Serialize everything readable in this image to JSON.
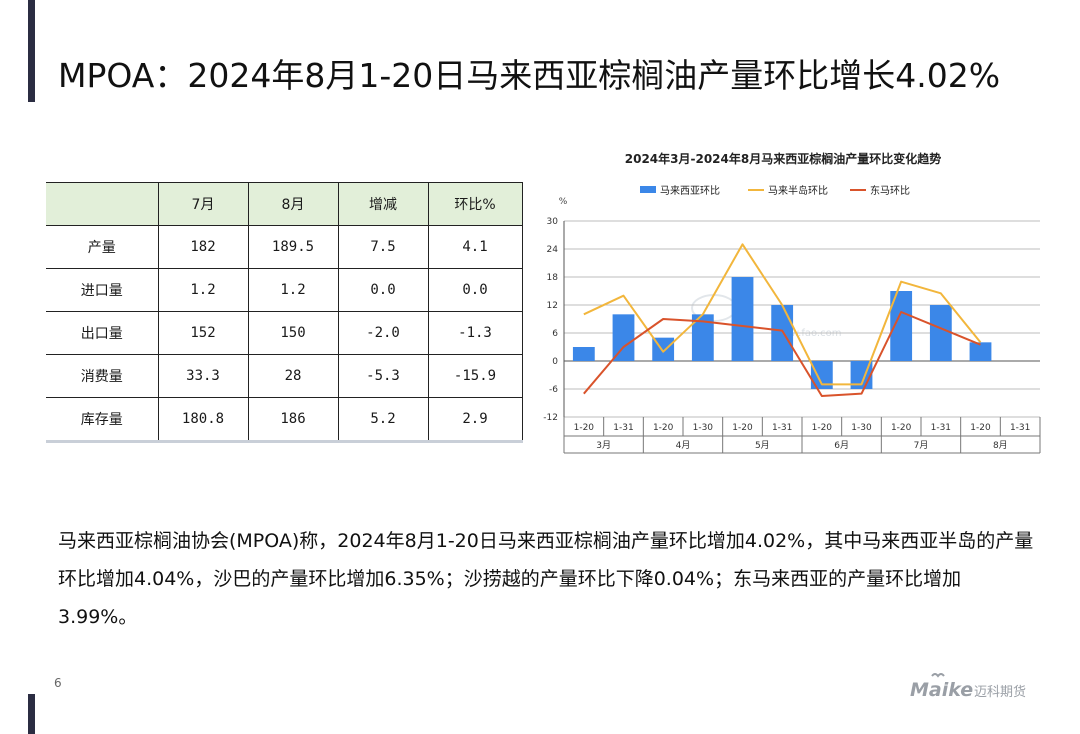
{
  "slide": {
    "title": "MPOA：2024年8月1-20日马来西亚棕榈油产量环比增长4.02%",
    "body": "马来西亚棕榈油协会(MPOA)称，2024年8月1-20日马来西亚棕榈油产量环比增加4.02%，其中马来西亚半岛的产量环比增加4.04%，沙巴的产量环比增加6.35%；沙捞越的产量环比下降0.04%；东马来西亚的产量环比增加3.99%。",
    "page_number": "6",
    "logo": {
      "wordmark": "Maike",
      "cn": "迈科期货"
    }
  },
  "table": {
    "headers": [
      "",
      "7月",
      "8月",
      "增减",
      "环比%"
    ],
    "rows": [
      [
        "产量",
        "182",
        "189.5",
        "7.5",
        "4.1"
      ],
      [
        "进口量",
        "1.2",
        "1.2",
        "0.0",
        "0.0"
      ],
      [
        "出口量",
        "152",
        "150",
        "-2.0",
        "-1.3"
      ],
      [
        "消费量",
        "33.3",
        "28",
        "-5.3",
        "-15.9"
      ],
      [
        "库存量",
        "180.8",
        "186",
        "5.2",
        "2.9"
      ]
    ]
  },
  "chart_data": {
    "type": "bar",
    "title": "2024年3月-2024年8月马来西亚棕榈油产量环比变化趋势",
    "ylabel": "%",
    "ylim": [
      -12,
      30
    ],
    "yticks": [
      30,
      24,
      18,
      12,
      6,
      0,
      -6,
      -12
    ],
    "grid": true,
    "legend_position": "top",
    "categories": [
      "1-20",
      "1-31",
      "1-20",
      "1-30",
      "1-20",
      "1-31",
      "1-20",
      "1-30",
      "1-20",
      "1-31",
      "1-20",
      "1-31"
    ],
    "month_groups": [
      "3月",
      "4月",
      "5月",
      "6月",
      "7月",
      "8月"
    ],
    "series": [
      {
        "name": "马来西亚环比",
        "type": "bar",
        "color": "#3b87e8",
        "values": [
          3,
          10,
          5,
          10,
          18,
          12,
          -6,
          -6,
          15,
          12,
          4,
          null
        ]
      },
      {
        "name": "马来半岛环比",
        "type": "line",
        "color": "#f2b63c",
        "values": [
          10,
          14,
          2,
          10,
          25,
          12,
          -5,
          -5,
          17,
          14.5,
          4,
          null
        ]
      },
      {
        "name": "东马环比",
        "type": "line",
        "color": "#d9532b",
        "values": [
          -7,
          3,
          9,
          8.5,
          7.5,
          6.5,
          -7.5,
          -7,
          10.5,
          7,
          3.5,
          null
        ]
      }
    ],
    "watermark": "www.fao.com"
  }
}
